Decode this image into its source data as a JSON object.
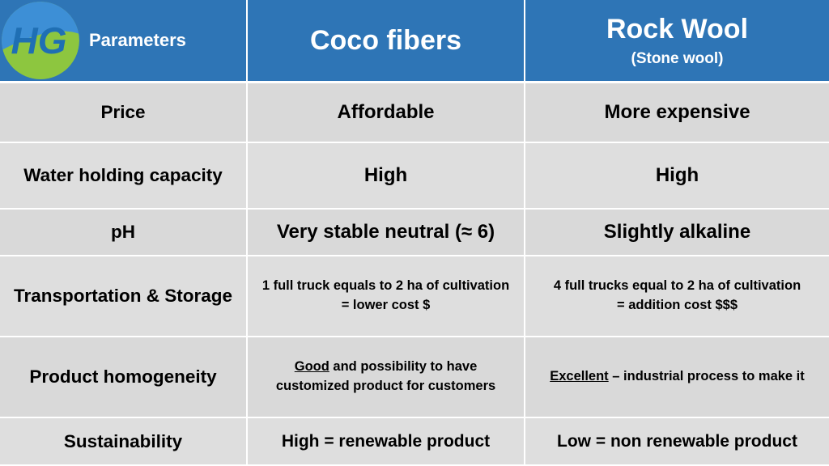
{
  "header": {
    "logo_text": "HG",
    "col1": "Parameters",
    "col2": "Coco fibers",
    "col3_title": "Rock Wool",
    "col3_sub": "(Stone wool)"
  },
  "rows": [
    {
      "param": "Price",
      "coco": "Affordable",
      "rock": "More expensive"
    },
    {
      "param": "Water holding capacity",
      "coco": "High",
      "rock": "High"
    },
    {
      "param": "pH",
      "coco": "Very stable neutral (≈ 6)",
      "rock": "Slightly alkaline"
    },
    {
      "param": "Transportation & Storage",
      "coco_line1": "1 full truck equals to 2 ha of cultivation",
      "coco_line2": "= lower cost $",
      "rock_line1": "4 full trucks equal to 2 ha of cultivation",
      "rock_line2": "= addition cost $$$"
    },
    {
      "param": "Product homogeneity",
      "coco_emph": "Good",
      "coco_rest1": " and possibility to have",
      "coco_line2": "customized product for customers",
      "rock_emph": "Excellent",
      "rock_rest": " – industrial process to make it"
    },
    {
      "param": "Sustainability",
      "coco": "High = renewable product",
      "rock": "Low = non renewable product"
    }
  ],
  "colors": {
    "header": "#2e75b6",
    "row": "#d9d9d9",
    "logo_green": "#8dc63f",
    "logo_blue": "#1f6fb4"
  }
}
